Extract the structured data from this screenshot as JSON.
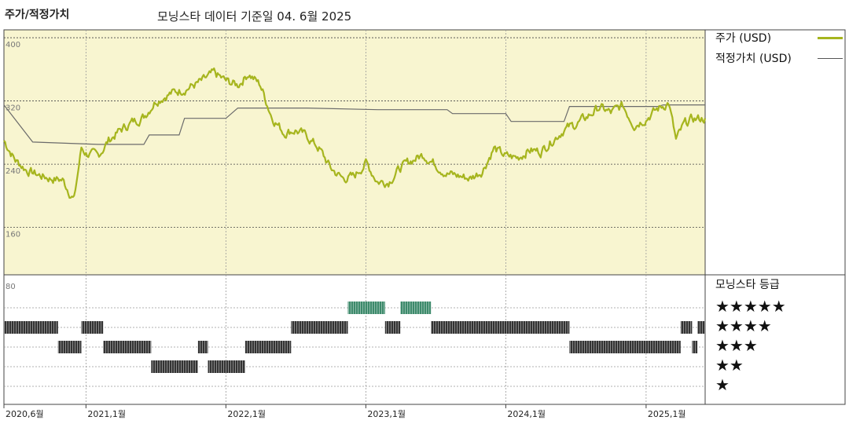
{
  "title": "주가/적정가치",
  "subtitle": "모닝스타 데이터 기준일 04. 6월 2025",
  "colors": {
    "price": "#a6b51e",
    "fair": "#6b6b6b",
    "panel": "#f8f5d0",
    "rating_green": "#3d8a6b",
    "rating_dark": "#333333"
  },
  "legend": {
    "price_label": "주가 (USD)",
    "fair_label": "적정가치 (USD)",
    "rating_title": "모닝스타 등급"
  },
  "chart_data": [
    {
      "type": "line",
      "x_range": [
        "2020-06-01",
        "2025-06-04"
      ],
      "ylim": [
        100,
        410
      ],
      "y_ticks": [
        400,
        320,
        240,
        160
      ],
      "y_tick_labels": [
        "400",
        "320",
        "240",
        "160"
      ],
      "x_ticks": [
        "2020-06-01",
        "2021-01-01",
        "2022-01-01",
        "2023-01-01",
        "2024-01-01",
        "2025-01-01"
      ],
      "x_tick_labels": [
        "2020,6월",
        "2021,1월",
        "2022,1월",
        "2023,1월",
        "2024,1월",
        "2025,1월"
      ],
      "series": [
        {
          "name": "주가 (USD)",
          "points": [
            [
              "2020-06-01",
              270
            ],
            [
              "2020-07-01",
              245
            ],
            [
              "2020-08-01",
              232
            ],
            [
              "2020-09-01",
              226
            ],
            [
              "2020-10-01",
              222
            ],
            [
              "2020-11-01",
              220
            ],
            [
              "2020-12-01",
              195
            ],
            [
              "2020-12-20",
              260
            ],
            [
              "2021-01-01",
              254
            ],
            [
              "2021-02-01",
              250
            ],
            [
              "2021-03-01",
              270
            ],
            [
              "2021-04-01",
              283
            ],
            [
              "2021-05-01",
              293
            ],
            [
              "2021-06-01",
              300
            ],
            [
              "2021-07-01",
              320
            ],
            [
              "2021-08-01",
              328
            ],
            [
              "2021-09-01",
              333
            ],
            [
              "2021-10-01",
              338
            ],
            [
              "2021-11-01",
              345
            ],
            [
              "2021-12-01",
              355
            ],
            [
              "2022-01-01",
              345
            ],
            [
              "2022-02-01",
              340
            ],
            [
              "2022-03-01",
              355
            ],
            [
              "2022-04-01",
              340
            ],
            [
              "2022-05-01",
              300
            ],
            [
              "2022-06-01",
              280
            ],
            [
              "2022-07-01",
              283
            ],
            [
              "2022-08-01",
              275
            ],
            [
              "2022-09-01",
              260
            ],
            [
              "2022-10-01",
              235
            ],
            [
              "2022-11-01",
              222
            ],
            [
              "2022-12-01",
              224
            ],
            [
              "2023-01-01",
              242
            ],
            [
              "2023-02-01",
              218
            ],
            [
              "2023-03-01",
              218
            ],
            [
              "2023-04-01",
              235
            ],
            [
              "2023-05-01",
              245
            ],
            [
              "2023-06-01",
              252
            ],
            [
              "2023-07-01",
              240
            ],
            [
              "2023-08-01",
              228
            ],
            [
              "2023-09-01",
              225
            ],
            [
              "2023-10-01",
              222
            ],
            [
              "2023-11-01",
              232
            ],
            [
              "2023-12-01",
              260
            ],
            [
              "2024-01-01",
              250
            ],
            [
              "2024-02-01",
              248
            ],
            [
              "2024-03-01",
              258
            ],
            [
              "2024-04-01",
              256
            ],
            [
              "2024-05-01",
              270
            ],
            [
              "2024-06-01",
              284
            ],
            [
              "2024-07-01",
              290
            ],
            [
              "2024-08-01",
              300
            ],
            [
              "2024-09-01",
              312
            ],
            [
              "2024-10-01",
              305
            ],
            [
              "2024-11-01",
              314
            ],
            [
              "2024-12-01",
              290
            ],
            [
              "2025-01-01",
              298
            ],
            [
              "2025-02-01",
              310
            ],
            [
              "2025-03-01",
              318
            ],
            [
              "2025-03-20",
              270
            ],
            [
              "2025-04-10",
              290
            ],
            [
              "2025-05-01",
              297
            ],
            [
              "2025-06-04",
              298
            ]
          ]
        },
        {
          "name": "적정가치 (USD)",
          "step": true,
          "points": [
            [
              "2020-06-01",
              315
            ],
            [
              "2020-08-15",
              268
            ],
            [
              "2021-02-01",
              265
            ],
            [
              "2021-06-01",
              265
            ],
            [
              "2021-06-15",
              277
            ],
            [
              "2021-09-01",
              277
            ],
            [
              "2021-09-15",
              298
            ],
            [
              "2022-01-01",
              298
            ],
            [
              "2022-02-01",
              311
            ],
            [
              "2022-08-01",
              311
            ],
            [
              "2023-02-01",
              309
            ],
            [
              "2023-08-01",
              309
            ],
            [
              "2023-08-15",
              304
            ],
            [
              "2024-01-01",
              304
            ],
            [
              "2024-01-15",
              294
            ],
            [
              "2024-06-01",
              294
            ],
            [
              "2024-06-15",
              313
            ],
            [
              "2025-02-01",
              313
            ],
            [
              "2025-02-15",
              315
            ],
            [
              "2025-06-04",
              315
            ]
          ]
        }
      ]
    },
    {
      "type": "rating",
      "title": "모닝스타 등급",
      "levels": [
        5,
        4,
        3,
        2,
        1
      ],
      "level_labels": [
        "★★★★★",
        "★★★★",
        "★★★",
        "★★",
        "★"
      ],
      "y_ticks": [
        80
      ],
      "y_tick_labels": [
        "80"
      ],
      "segments": [
        {
          "level": 5,
          "start": "2022-11-15",
          "end": "2023-02-20"
        },
        {
          "level": 5,
          "start": "2023-04-01",
          "end": "2023-06-20"
        },
        {
          "level": 4,
          "start": "2020-06-01",
          "end": "2020-10-20"
        },
        {
          "level": 4,
          "start": "2020-12-20",
          "end": "2021-02-15"
        },
        {
          "level": 4,
          "start": "2022-06-20",
          "end": "2022-11-15"
        },
        {
          "level": 4,
          "start": "2023-02-20",
          "end": "2023-04-01"
        },
        {
          "level": 4,
          "start": "2023-06-20",
          "end": "2024-06-15"
        },
        {
          "level": 4,
          "start": "2025-04-01",
          "end": "2025-05-01"
        },
        {
          "level": 4,
          "start": "2025-05-15",
          "end": "2025-06-04"
        },
        {
          "level": 3,
          "start": "2020-10-20",
          "end": "2020-12-20"
        },
        {
          "level": 3,
          "start": "2021-02-15",
          "end": "2021-06-20"
        },
        {
          "level": 3,
          "start": "2021-10-20",
          "end": "2021-11-15"
        },
        {
          "level": 3,
          "start": "2022-02-20",
          "end": "2022-06-20"
        },
        {
          "level": 3,
          "start": "2024-06-15",
          "end": "2025-04-01"
        },
        {
          "level": 3,
          "start": "2025-05-01",
          "end": "2025-05-15"
        },
        {
          "level": 2,
          "start": "2021-06-20",
          "end": "2021-10-20"
        },
        {
          "level": 2,
          "start": "2021-11-15",
          "end": "2022-02-20"
        }
      ]
    }
  ]
}
